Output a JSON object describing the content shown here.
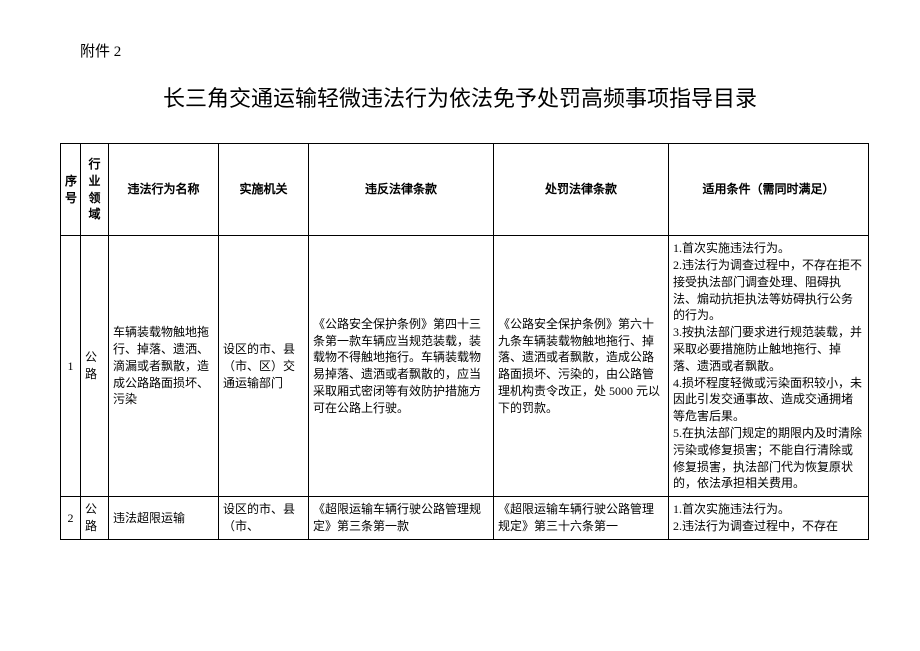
{
  "attachment_label": "附件 2",
  "doc_title": "长三角交通运输轻微违法行为依法免予处罚高频事项指导目录",
  "headers": {
    "seq": "序号",
    "domain": "行业领域",
    "name": "违法行为名称",
    "agency": "实施机关",
    "rule": "违反法律条款",
    "penalty": "处罚法律条款",
    "conditions": "适用条件（需同时满足）"
  },
  "rows": [
    {
      "seq": "1",
      "domain": "公路",
      "name": "车辆装载物触地拖行、掉落、遗洒、滴漏或者飘散，造成公路路面损坏、污染",
      "agency": "设区的市、县（市、区）交通运输部门",
      "rule": "《公路安全保护条例》第四十三条第一款车辆应当规范装载，装载物不得触地拖行。车辆装载物易掉落、遗洒或者飘散的，应当采取厢式密闭等有效防护措施方可在公路上行驶。",
      "penalty": "《公路安全保护条例》第六十九条车辆装载物触地拖行、掉落、遗洒或者飘散，造成公路路面损坏、污染的，由公路管理机构责令改正，处 5000 元以下的罚款。",
      "conditions": "1.首次实施违法行为。\n2.违法行为调查过程中，不存在拒不接受执法部门调查处理、阻碍执法、煽动抗拒执法等妨碍执行公务的行为。\n3.按执法部门要求进行规范装载，并采取必要措施防止触地拖行、掉落、遗洒或者飘散。\n4.损坏程度轻微或污染面积较小，未因此引发交通事故、造成交通拥堵等危害后果。\n5.在执法部门规定的期限内及时清除污染或修复损害；不能自行清除或修复损害，执法部门代为恢复原状的，依法承担相关费用。"
    },
    {
      "seq": "2",
      "domain": "公路",
      "name": "违法超限运输",
      "agency": "设区的市、县（市、",
      "rule": "《超限运输车辆行驶公路管理规定》第三条第一款",
      "penalty": "《超限运输车辆行驶公路管理规定》第三十六条第一",
      "conditions": "1.首次实施违法行为。\n2.违法行为调查过程中，不存在"
    }
  ]
}
